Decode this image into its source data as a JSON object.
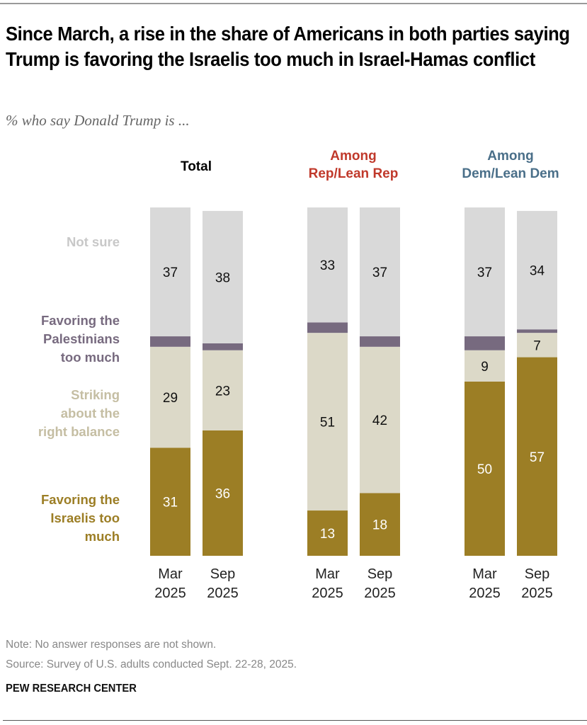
{
  "header": {
    "title": "Since March, a rise in the share of Americans in both parties saying Trump is favoring the Israelis too much in Israel-Hamas conflict",
    "subtitle": "% who say Donald Trump is ..."
  },
  "footer": {
    "note": "Note: No answer responses are not shown.",
    "source": "Source: Survey of U.S. adults conducted Sept. 22-28, 2025.",
    "brand": "PEW RESEARCH CENTER"
  },
  "chart_data": {
    "type": "bar",
    "stacked": true,
    "orientation": "vertical",
    "title": "Since March, a rise in the share of Americans in both parties saying Trump is favoring the Israelis too much in Israel-Hamas conflict",
    "subtitle": "% who say Donald Trump is ...",
    "ylim": [
      0,
      100
    ],
    "grid": false,
    "legend_placement": "left",
    "series_order_bottom_to_top": [
      "israelis",
      "balance",
      "palestinians",
      "not_sure"
    ],
    "series": [
      {
        "key": "israelis",
        "name": "Favoring the Israelis too much",
        "name_lines": [
          "Favoring the",
          "Israelis too",
          "much"
        ],
        "color": "#9c7e25",
        "label_color": "#ffffff",
        "text_color": "#9c7e25"
      },
      {
        "key": "balance",
        "name": "Striking about the right balance",
        "name_lines": [
          "Striking",
          "about the",
          "right balance"
        ],
        "color": "#dcd9c8",
        "label_color": "#111111",
        "text_color": "#c5bea3"
      },
      {
        "key": "palestinians",
        "name": "Favoring the Palestinians too much",
        "name_lines": [
          "Favoring the",
          "Palestinians",
          "too much"
        ],
        "color": "#776a7f",
        "label_color": "#ffffff",
        "text_color": "#776a7f"
      },
      {
        "key": "not_sure",
        "name": "Not sure",
        "name_lines": [
          "Not sure"
        ],
        "color": "#d9d9d9",
        "label_color": "#111111",
        "text_color": "#c8c8c8"
      }
    ],
    "groups": [
      {
        "title_lines": [
          "Total"
        ],
        "title_color": "#000000",
        "bars": [
          {
            "x_label_lines": [
              "Mar",
              "2025"
            ],
            "values": {
              "israelis": 31,
              "balance": 29,
              "palestinians": 3,
              "not_sure": 37
            },
            "labeled": [
              "israelis",
              "balance",
              "not_sure"
            ]
          },
          {
            "x_label_lines": [
              "Sep",
              "2025"
            ],
            "values": {
              "israelis": 36,
              "balance": 23,
              "palestinians": 2,
              "not_sure": 38
            },
            "labeled": [
              "israelis",
              "balance",
              "not_sure"
            ]
          }
        ]
      },
      {
        "title_lines": [
          "Among",
          "Rep/Lean Rep"
        ],
        "title_color": "#c0392b",
        "bars": [
          {
            "x_label_lines": [
              "Mar",
              "2025"
            ],
            "values": {
              "israelis": 13,
              "balance": 51,
              "palestinians": 3,
              "not_sure": 33
            },
            "labeled": [
              "israelis",
              "balance",
              "not_sure"
            ]
          },
          {
            "x_label_lines": [
              "Sep",
              "2025"
            ],
            "values": {
              "israelis": 18,
              "balance": 42,
              "palestinians": 3,
              "not_sure": 37
            },
            "labeled": [
              "israelis",
              "balance",
              "not_sure"
            ]
          }
        ]
      },
      {
        "title_lines": [
          "Among",
          "Dem/Lean Dem"
        ],
        "title_color": "#4a6f89",
        "bars": [
          {
            "x_label_lines": [
              "Mar",
              "2025"
            ],
            "values": {
              "israelis": 50,
              "balance": 9,
              "palestinians": 4,
              "not_sure": 37
            },
            "labeled": [
              "israelis",
              "balance",
              "not_sure"
            ]
          },
          {
            "x_label_lines": [
              "Sep",
              "2025"
            ],
            "values": {
              "israelis": 57,
              "balance": 7,
              "palestinians": 1,
              "not_sure": 34
            },
            "labeled": [
              "israelis",
              "balance",
              "not_sure"
            ]
          }
        ]
      }
    ]
  }
}
